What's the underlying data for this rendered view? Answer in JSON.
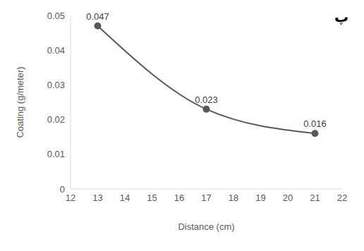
{
  "chart_data": {
    "type": "line",
    "annotation": "پ",
    "x_label": "Distance (cm)",
    "y_label": "Coating (g/meter)",
    "x": [
      13,
      17,
      21
    ],
    "values": [
      0.047,
      0.023,
      0.016
    ],
    "color": "#595959",
    "marker": "circle",
    "line_style": "smooth",
    "data_labels": true,
    "grid": false,
    "xlim": [
      12,
      22
    ],
    "xticks": [
      12,
      13,
      14,
      15,
      16,
      17,
      18,
      19,
      20,
      21,
      22
    ],
    "ylim": [
      0,
      0.05
    ],
    "yticks": [
      0,
      0.01,
      0.02,
      0.03,
      0.04,
      0.05
    ]
  }
}
